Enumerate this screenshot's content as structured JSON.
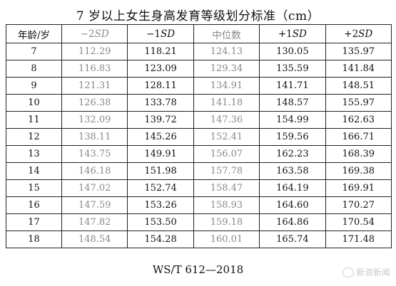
{
  "title": "7 岁以上女生身高发育等级划分标准（cm）",
  "table": {
    "headers": [
      {
        "label": "年龄/岁",
        "tone": "dark"
      },
      {
        "label": "−2SD",
        "tone": "gray"
      },
      {
        "label": "−1SD",
        "tone": "dark"
      },
      {
        "label": "中位数",
        "tone": "gray"
      },
      {
        "label": "+1SD",
        "tone": "dark"
      },
      {
        "label": "+2SD",
        "tone": "dark"
      }
    ],
    "rows": [
      {
        "age": "7",
        "values": [
          "112.29",
          "118.21",
          "124.13",
          "130.05",
          "135.97"
        ]
      },
      {
        "age": "8",
        "values": [
          "116.83",
          "123.09",
          "129.34",
          "135.59",
          "141.84"
        ]
      },
      {
        "age": "9",
        "values": [
          "121.31",
          "128.11",
          "134.91",
          "141.71",
          "148.51"
        ]
      },
      {
        "age": "10",
        "values": [
          "126.38",
          "133.78",
          "141.18",
          "148.57",
          "155.97"
        ]
      },
      {
        "age": "11",
        "values": [
          "132.09",
          "139.72",
          "147.36",
          "154.99",
          "162.63"
        ]
      },
      {
        "age": "12",
        "values": [
          "138.11",
          "145.26",
          "152.41",
          "159.56",
          "166.71"
        ]
      },
      {
        "age": "13",
        "values": [
          "143.75",
          "149.91",
          "156.07",
          "162.23",
          "168.39"
        ]
      },
      {
        "age": "14",
        "values": [
          "146.18",
          "151.98",
          "157.78",
          "163.58",
          "169.38"
        ]
      },
      {
        "age": "15",
        "values": [
          "147.02",
          "152.74",
          "158.47",
          "164.19",
          "169.91"
        ]
      },
      {
        "age": "16",
        "values": [
          "147.59",
          "153.26",
          "158.93",
          "164.60",
          "170.27"
        ]
      },
      {
        "age": "17",
        "values": [
          "147.82",
          "153.50",
          "159.18",
          "164.86",
          "170.54"
        ]
      },
      {
        "age": "18",
        "values": [
          "148.54",
          "154.28",
          "160.01",
          "165.74",
          "171.48"
        ]
      }
    ]
  },
  "footer": "WS/T 612—2018",
  "watermark": {
    "text": "新浪新闻",
    "icon": "weibo-logo-icon"
  }
}
